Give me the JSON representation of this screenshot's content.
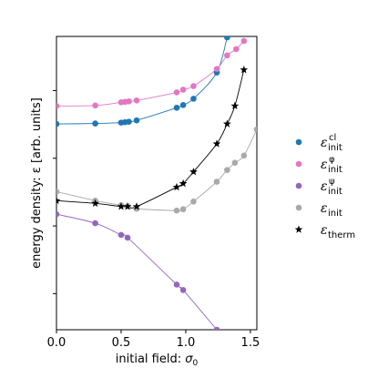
{
  "chart_data": {
    "type": "scatter",
    "xlabel": "initial field: σ0",
    "xlabel_parts": {
      "text": "initial field: ",
      "symbol": "σ",
      "subscript": "0"
    },
    "ylabel": "energy density: ε [arb. units]",
    "xlim": [
      0.0,
      1.55
    ],
    "ylim": [
      -1.9,
      1.35
    ],
    "x_ticks": [
      0.0,
      0.5,
      1.0,
      1.5
    ],
    "x_tick_labels": [
      "0.0",
      "0.5",
      "1.0",
      "1.5"
    ],
    "y_ticks": [
      -1.5,
      -0.75,
      0.0,
      0.75
    ],
    "y_tick_labels_shown": false,
    "grid": false,
    "legend_position": "right-outside",
    "series": [
      {
        "name": "ε_init^cl",
        "legend": {
          "symbol": "ε",
          "sub": "init",
          "sup": "cl"
        },
        "color": "#1f77b4",
        "marker": "circle",
        "curve": true,
        "points": [
          [
            0.0,
            0.38
          ],
          [
            0.3,
            0.385
          ],
          [
            0.5,
            0.395
          ],
          [
            0.53,
            0.4
          ],
          [
            0.56,
            0.405
          ],
          [
            0.62,
            0.42
          ],
          [
            0.93,
            0.56
          ],
          [
            0.98,
            0.59
          ],
          [
            1.06,
            0.66
          ],
          [
            1.24,
            0.95
          ],
          [
            1.32,
            1.34
          ]
        ]
      },
      {
        "name": "ε_init^φ",
        "legend": {
          "symbol": "ε",
          "sub": "init",
          "sup": "φ"
        },
        "color": "#e377c2",
        "marker": "circle",
        "curve": true,
        "points": [
          [
            0.0,
            0.58
          ],
          [
            0.3,
            0.585
          ],
          [
            0.5,
            0.62
          ],
          [
            0.53,
            0.625
          ],
          [
            0.56,
            0.63
          ],
          [
            0.62,
            0.64
          ],
          [
            0.93,
            0.73
          ],
          [
            0.98,
            0.76
          ],
          [
            1.06,
            0.8
          ],
          [
            1.24,
            0.99
          ],
          [
            1.32,
            1.14
          ],
          [
            1.39,
            1.21
          ],
          [
            1.45,
            1.3
          ]
        ]
      },
      {
        "name": "ε_init^ψ",
        "legend": {
          "symbol": "ε",
          "sub": "init",
          "sup": "ψ"
        },
        "color": "#9467bd",
        "marker": "circle",
        "curve": true,
        "points": [
          [
            0.0,
            -0.62
          ],
          [
            0.3,
            -0.72
          ],
          [
            0.5,
            -0.85
          ],
          [
            0.55,
            -0.88
          ],
          [
            0.93,
            -1.4
          ],
          [
            0.98,
            -1.46
          ],
          [
            1.24,
            -1.9
          ]
        ]
      },
      {
        "name": "ε_init",
        "legend": {
          "symbol": "ε",
          "sub": "init",
          "sup": ""
        },
        "color": "#a9a9a9",
        "marker": "circle",
        "curve": true,
        "points": [
          [
            0.0,
            -0.37
          ],
          [
            0.3,
            -0.47
          ],
          [
            0.5,
            -0.52
          ],
          [
            0.55,
            -0.53
          ],
          [
            0.62,
            -0.56
          ],
          [
            0.93,
            -0.58
          ],
          [
            0.98,
            -0.565
          ],
          [
            1.06,
            -0.48
          ],
          [
            1.24,
            -0.26
          ],
          [
            1.32,
            -0.13
          ],
          [
            1.38,
            -0.05
          ],
          [
            1.45,
            0.03
          ],
          [
            1.55,
            0.32
          ]
        ]
      },
      {
        "name": "ε_therm",
        "legend": {
          "symbol": "ε",
          "sub": "therm",
          "sup": ""
        },
        "color": "#000000",
        "marker": "star",
        "curve": true,
        "points": [
          [
            0.0,
            -0.47
          ],
          [
            0.3,
            -0.5
          ],
          [
            0.5,
            -0.535
          ],
          [
            0.55,
            -0.535
          ],
          [
            0.62,
            -0.535
          ],
          [
            0.93,
            -0.32
          ],
          [
            0.98,
            -0.28
          ],
          [
            1.06,
            -0.15
          ],
          [
            1.24,
            0.16
          ],
          [
            1.32,
            0.38
          ],
          [
            1.38,
            0.58
          ],
          [
            1.45,
            0.98
          ]
        ]
      }
    ]
  }
}
